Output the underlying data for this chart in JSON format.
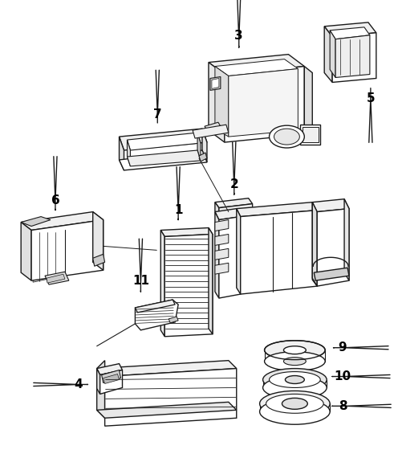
{
  "background_color": "#ffffff",
  "line_color": "#1a1a1a",
  "label_color": "#000000",
  "figsize": [
    4.96,
    5.7
  ],
  "dpi": 100
}
